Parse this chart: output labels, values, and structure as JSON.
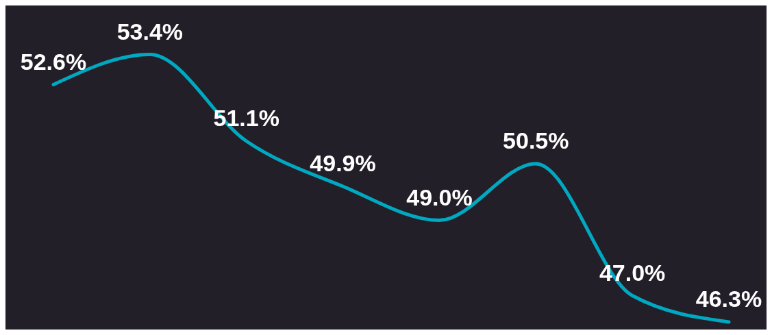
{
  "chart_data": {
    "type": "line",
    "categories": [
      null,
      null,
      null,
      null,
      null,
      null,
      null,
      null
    ],
    "series": [
      {
        "color": "#00a9c1",
        "values": [
          52.6,
          53.4,
          51.1,
          49.9,
          49.0,
          50.5,
          47.0,
          46.3
        ],
        "value_labels": [
          "52.6%",
          "53.4%",
          "51.1%",
          "49.9%",
          "49.0%",
          "50.5%",
          "47.0%",
          "46.3%"
        ]
      }
    ],
    "tick_labels": false,
    "grid": false,
    "legend": false
  }
}
